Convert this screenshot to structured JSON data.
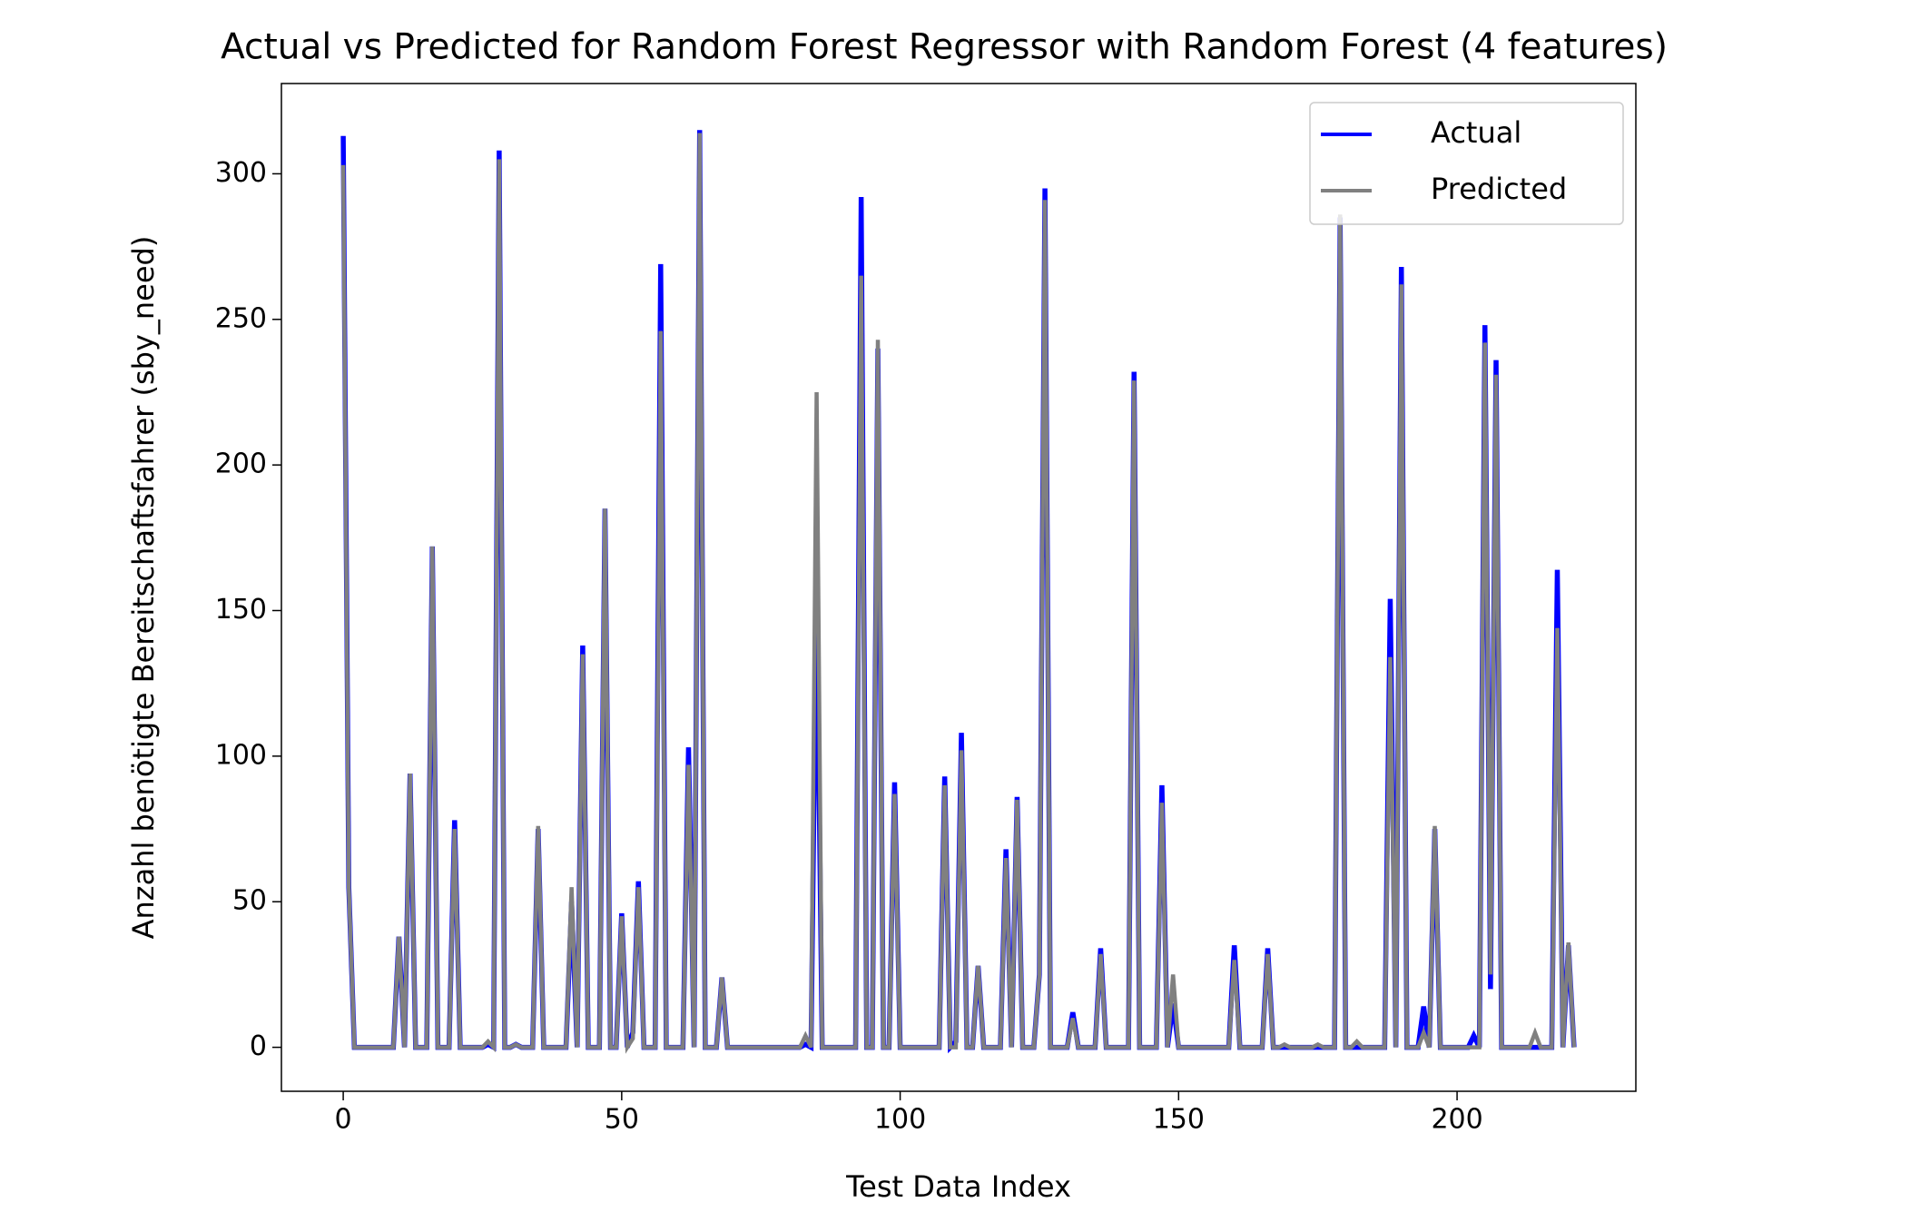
{
  "chart_data": {
    "type": "line",
    "title": "Actual vs Predicted for Random Forest Regressor with Random Forest (4 features)",
    "xlabel": "Test Data Index",
    "ylabel": "Anzahl benötigte Bereitschaftsfahrer (sby_need)",
    "x": [
      0,
      1,
      2,
      3,
      4,
      5,
      6,
      7,
      8,
      9,
      10,
      11,
      12,
      13,
      14,
      15,
      16,
      17,
      18,
      19,
      20,
      21,
      22,
      23,
      24,
      25,
      26,
      27,
      28,
      29,
      30,
      31,
      32,
      33,
      34,
      35,
      36,
      37,
      38,
      39,
      40,
      41,
      42,
      43,
      44,
      45,
      46,
      47,
      48,
      49,
      50,
      51,
      52,
      53,
      54,
      55,
      56,
      57,
      58,
      59,
      60,
      61,
      62,
      63,
      64,
      65,
      66,
      67,
      68,
      69,
      70,
      71,
      72,
      73,
      74,
      75,
      76,
      77,
      78,
      79,
      80,
      81,
      82,
      83,
      84,
      85,
      86,
      87,
      88,
      89,
      90,
      91,
      92,
      93,
      94,
      95,
      96,
      97,
      98,
      99,
      100,
      101,
      102,
      103,
      104,
      105,
      106,
      107,
      108,
      109,
      110,
      111,
      112,
      113,
      114,
      115,
      116,
      117,
      118,
      119,
      120,
      121,
      122,
      123,
      124,
      125,
      126,
      127,
      128,
      129,
      130,
      131,
      132,
      133,
      134,
      135,
      136,
      137,
      138,
      139,
      140,
      141,
      142,
      143,
      144,
      145,
      146,
      147,
      148,
      149,
      150,
      151,
      152,
      153,
      154,
      155,
      156,
      157,
      158,
      159,
      160,
      161,
      162,
      163,
      164,
      165,
      166,
      167,
      168,
      169,
      170,
      171,
      172,
      173,
      174,
      175,
      176,
      177,
      178,
      179,
      180,
      181,
      182,
      183,
      184,
      185,
      186,
      187,
      188,
      189,
      190,
      191,
      192,
      193,
      194,
      195,
      196,
      197,
      198,
      199,
      200,
      201,
      202,
      203,
      204,
      205,
      206,
      207,
      208,
      209,
      210,
      211,
      212,
      213,
      214,
      215,
      216,
      217,
      218,
      219,
      220,
      221
    ],
    "series": [
      {
        "name": "Actual",
        "color": "#0000ff",
        "values": [
          313,
          55,
          0,
          0,
          0,
          0,
          0,
          0,
          0,
          0,
          38,
          0,
          94,
          0,
          0,
          0,
          172,
          0,
          0,
          0,
          78,
          0,
          0,
          0,
          0,
          0,
          1,
          0,
          308,
          0,
          0,
          1,
          0,
          0,
          0,
          75,
          0,
          0,
          0,
          0,
          0,
          50,
          0,
          138,
          0,
          0,
          0,
          185,
          0,
          0,
          46,
          0,
          5,
          57,
          0,
          0,
          0,
          269,
          0,
          0,
          0,
          0,
          103,
          0,
          315,
          0,
          0,
          0,
          24,
          0,
          0,
          0,
          0,
          0,
          0,
          0,
          0,
          0,
          0,
          0,
          0,
          0,
          0,
          1,
          0,
          160,
          0,
          0,
          0,
          0,
          0,
          0,
          0,
          292,
          0,
          0,
          240,
          0,
          0,
          91,
          0,
          0,
          0,
          0,
          0,
          0,
          0,
          0,
          93,
          0,
          2,
          108,
          0,
          0,
          28,
          0,
          0,
          0,
          0,
          68,
          0,
          86,
          0,
          0,
          0,
          25,
          295,
          0,
          0,
          0,
          0,
          12,
          0,
          0,
          0,
          0,
          34,
          0,
          0,
          0,
          0,
          0,
          232,
          0,
          0,
          0,
          0,
          90,
          0,
          15,
          0,
          0,
          0,
          0,
          0,
          0,
          0,
          0,
          0,
          0,
          35,
          0,
          0,
          0,
          0,
          0,
          34,
          0,
          0,
          0,
          0,
          0,
          0,
          0,
          0,
          0,
          0,
          0,
          0,
          285,
          0,
          0,
          0,
          0,
          0,
          0,
          0,
          0,
          154,
          0,
          268,
          0,
          0,
          0,
          14,
          0,
          75,
          0,
          0,
          0,
          0,
          0,
          0,
          4,
          0,
          248,
          20,
          236,
          0,
          0,
          0,
          0,
          0,
          0,
          0,
          0,
          0,
          0,
          164,
          0,
          35,
          0
        ]
      },
      {
        "name": "Predicted",
        "color": "#808080",
        "values": [
          303,
          55,
          0,
          0,
          0,
          0,
          0,
          0,
          0,
          0,
          38,
          0,
          94,
          0,
          0,
          0,
          172,
          0,
          0,
          0,
          75,
          0,
          0,
          0,
          0,
          0,
          2,
          0,
          305,
          0,
          0,
          1,
          0,
          0,
          0,
          76,
          0,
          0,
          0,
          0,
          0,
          55,
          0,
          135,
          0,
          0,
          0,
          185,
          0,
          0,
          45,
          0,
          3,
          55,
          0,
          0,
          0,
          246,
          0,
          0,
          0,
          0,
          97,
          0,
          314,
          0,
          0,
          0,
          24,
          0,
          0,
          0,
          0,
          0,
          0,
          0,
          0,
          0,
          0,
          0,
          0,
          0,
          0,
          4,
          0,
          225,
          0,
          0,
          0,
          0,
          0,
          0,
          0,
          265,
          0,
          0,
          243,
          0,
          0,
          87,
          0,
          0,
          0,
          0,
          0,
          0,
          0,
          0,
          90,
          0,
          0,
          102,
          0,
          0,
          28,
          0,
          0,
          0,
          0,
          65,
          0,
          85,
          0,
          0,
          0,
          25,
          291,
          0,
          0,
          0,
          0,
          10,
          0,
          0,
          0,
          0,
          32,
          0,
          0,
          0,
          0,
          0,
          229,
          0,
          0,
          0,
          0,
          84,
          0,
          25,
          0,
          0,
          0,
          0,
          0,
          0,
          0,
          0,
          0,
          0,
          30,
          0,
          0,
          0,
          0,
          0,
          32,
          0,
          0,
          1,
          0,
          0,
          0,
          0,
          0,
          1,
          0,
          0,
          0,
          286,
          0,
          0,
          2,
          0,
          0,
          0,
          0,
          0,
          134,
          0,
          262,
          0,
          0,
          0,
          5,
          0,
          76,
          0,
          0,
          0,
          0,
          0,
          0,
          0,
          0,
          242,
          25,
          231,
          0,
          0,
          0,
          0,
          0,
          0,
          5,
          0,
          0,
          0,
          144,
          0,
          36,
          0
        ]
      }
    ],
    "xlim": [
      -11.1,
      232.1
    ],
    "ylim": [
      -15.1,
      331
    ],
    "xticks": [
      0,
      50,
      100,
      150,
      200
    ],
    "yticks": [
      0,
      50,
      100,
      150,
      200,
      250,
      300
    ],
    "legend": "upper right",
    "grid": false
  }
}
